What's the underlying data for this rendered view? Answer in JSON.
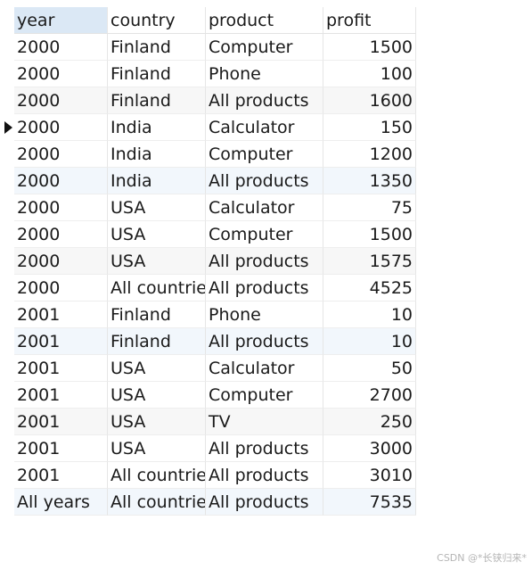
{
  "table": {
    "columns": [
      "year",
      "country",
      "product",
      "profit"
    ],
    "rows": [
      {
        "year": "2000",
        "country": "Finland",
        "product": "Computer",
        "profit": "1500"
      },
      {
        "year": "2000",
        "country": "Finland",
        "product": "Phone",
        "profit": "100"
      },
      {
        "year": "2000",
        "country": "Finland",
        "product": "All products",
        "profit": "1600"
      },
      {
        "year": "2000",
        "country": "India",
        "product": "Calculator",
        "profit": "150"
      },
      {
        "year": "2000",
        "country": "India",
        "product": "Computer",
        "profit": "1200"
      },
      {
        "year": "2000",
        "country": "India",
        "product": "All products",
        "profit": "1350"
      },
      {
        "year": "2000",
        "country": "USA",
        "product": "Calculator",
        "profit": "75"
      },
      {
        "year": "2000",
        "country": "USA",
        "product": "Computer",
        "profit": "1500"
      },
      {
        "year": "2000",
        "country": "USA",
        "product": "All products",
        "profit": "1575"
      },
      {
        "year": "2000",
        "country": "All countries",
        "product": "All products",
        "profit": "4525"
      },
      {
        "year": "2001",
        "country": "Finland",
        "product": "Phone",
        "profit": "10"
      },
      {
        "year": "2001",
        "country": "Finland",
        "product": "All products",
        "profit": "10"
      },
      {
        "year": "2001",
        "country": "USA",
        "product": "Calculator",
        "profit": "50"
      },
      {
        "year": "2001",
        "country": "USA",
        "product": "Computer",
        "profit": "2700"
      },
      {
        "year": "2001",
        "country": "USA",
        "product": "TV",
        "profit": "250"
      },
      {
        "year": "2001",
        "country": "USA",
        "product": "All products",
        "profit": "3000"
      },
      {
        "year": "2001",
        "country": "All countries",
        "product": "All products",
        "profit": "3010"
      },
      {
        "year": "All years",
        "country": "All countries",
        "product": "All products",
        "profit": "7535"
      }
    ]
  },
  "current_row_index": 3,
  "watermark": "CSDN @*长铗归来*",
  "colors": {
    "header_selected_bg": "#dbe8f5",
    "row_alt_bg": "#f7f7f7",
    "row_highlight_bg": "#f2f7fc"
  }
}
